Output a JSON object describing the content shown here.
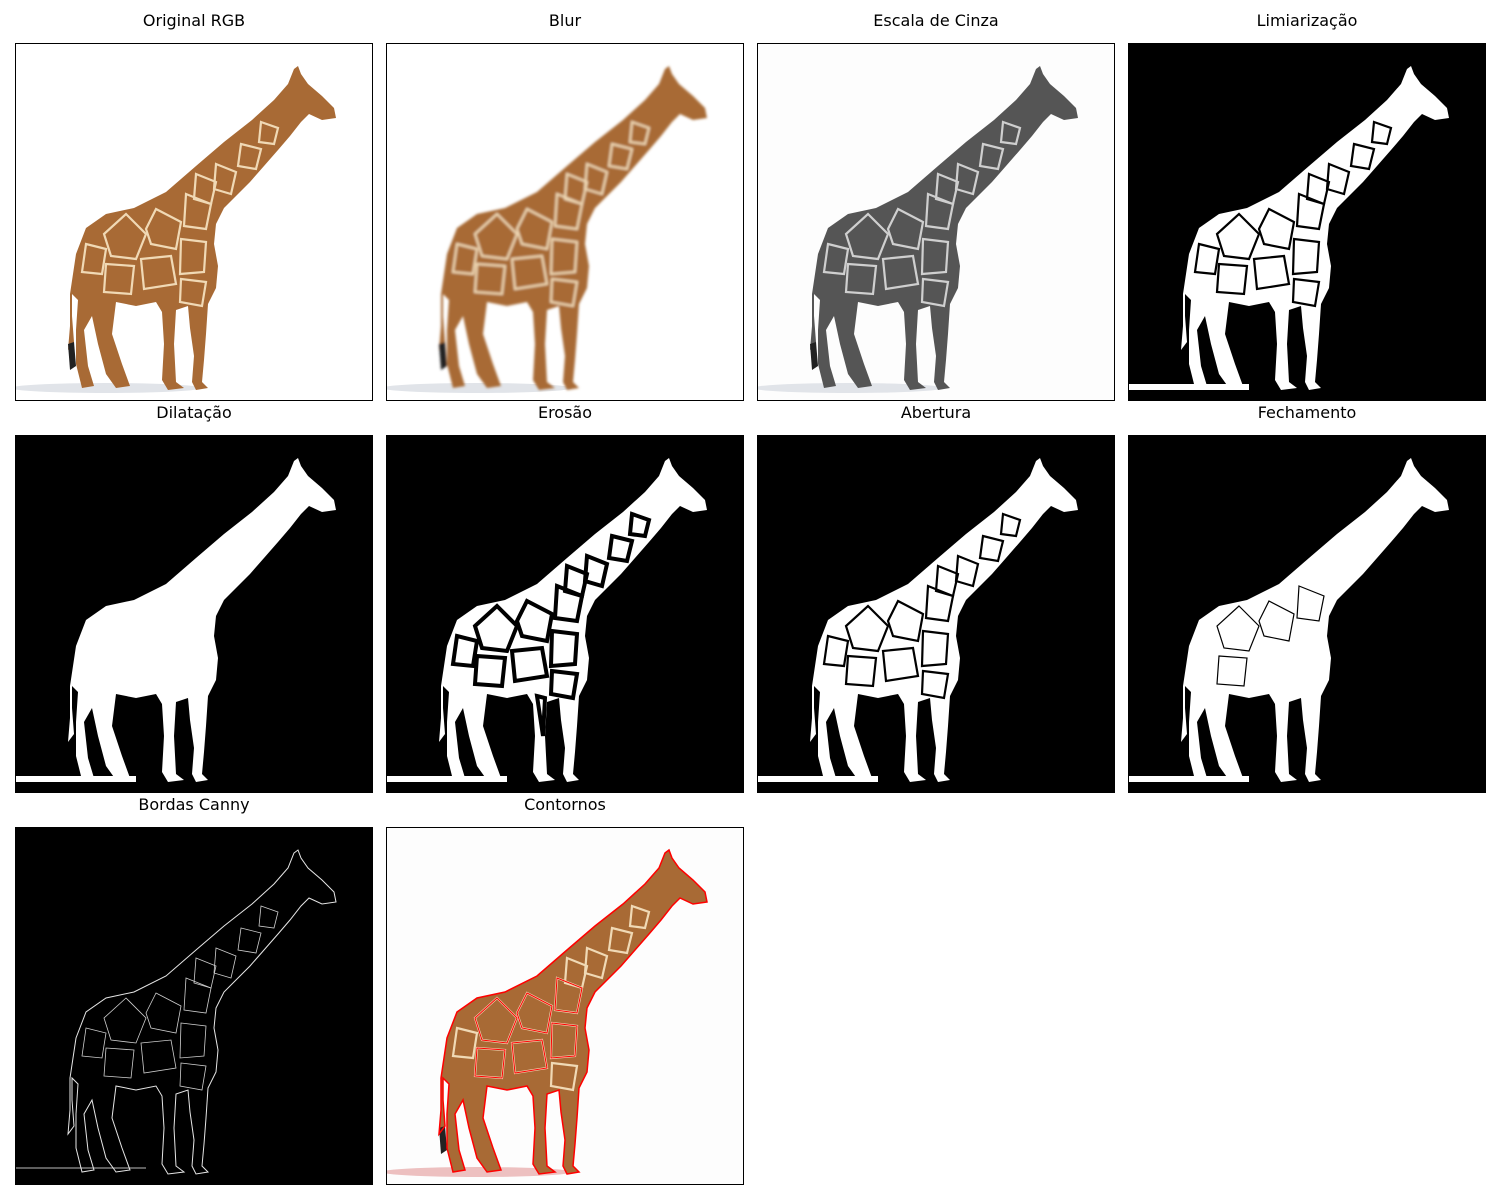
{
  "panels": [
    {
      "title": "Original RGB",
      "style": "rgb",
      "background": "#ffffff"
    },
    {
      "title": "Blur",
      "style": "blur",
      "background": "#ffffff"
    },
    {
      "title": "Escala de Cinza",
      "style": "gray",
      "background": "#fdfdfd"
    },
    {
      "title": "Limiarização",
      "style": "mask-thresh",
      "background": "#000000"
    },
    {
      "title": "Dilatação",
      "style": "mask-dilate",
      "background": "#000000"
    },
    {
      "title": "Erosão",
      "style": "mask-erode",
      "background": "#000000"
    },
    {
      "title": "Abertura",
      "style": "mask-open",
      "background": "#000000"
    },
    {
      "title": "Fechamento",
      "style": "mask-close",
      "background": "#000000"
    },
    {
      "title": "Bordas Canny",
      "style": "canny",
      "background": "#000000"
    },
    {
      "title": "Contornos",
      "style": "contours",
      "background": "#fdfdfd"
    }
  ],
  "colors": {
    "giraffe_fill": "#a86a35",
    "giraffe_dark": "#7a4a22",
    "patch_lines": "#f0d9b5",
    "contour": "#ff0000",
    "mask": "#ffffff",
    "gray_body": "#555555"
  },
  "icons": {
    "image": "image-thumbnail-icon"
  }
}
